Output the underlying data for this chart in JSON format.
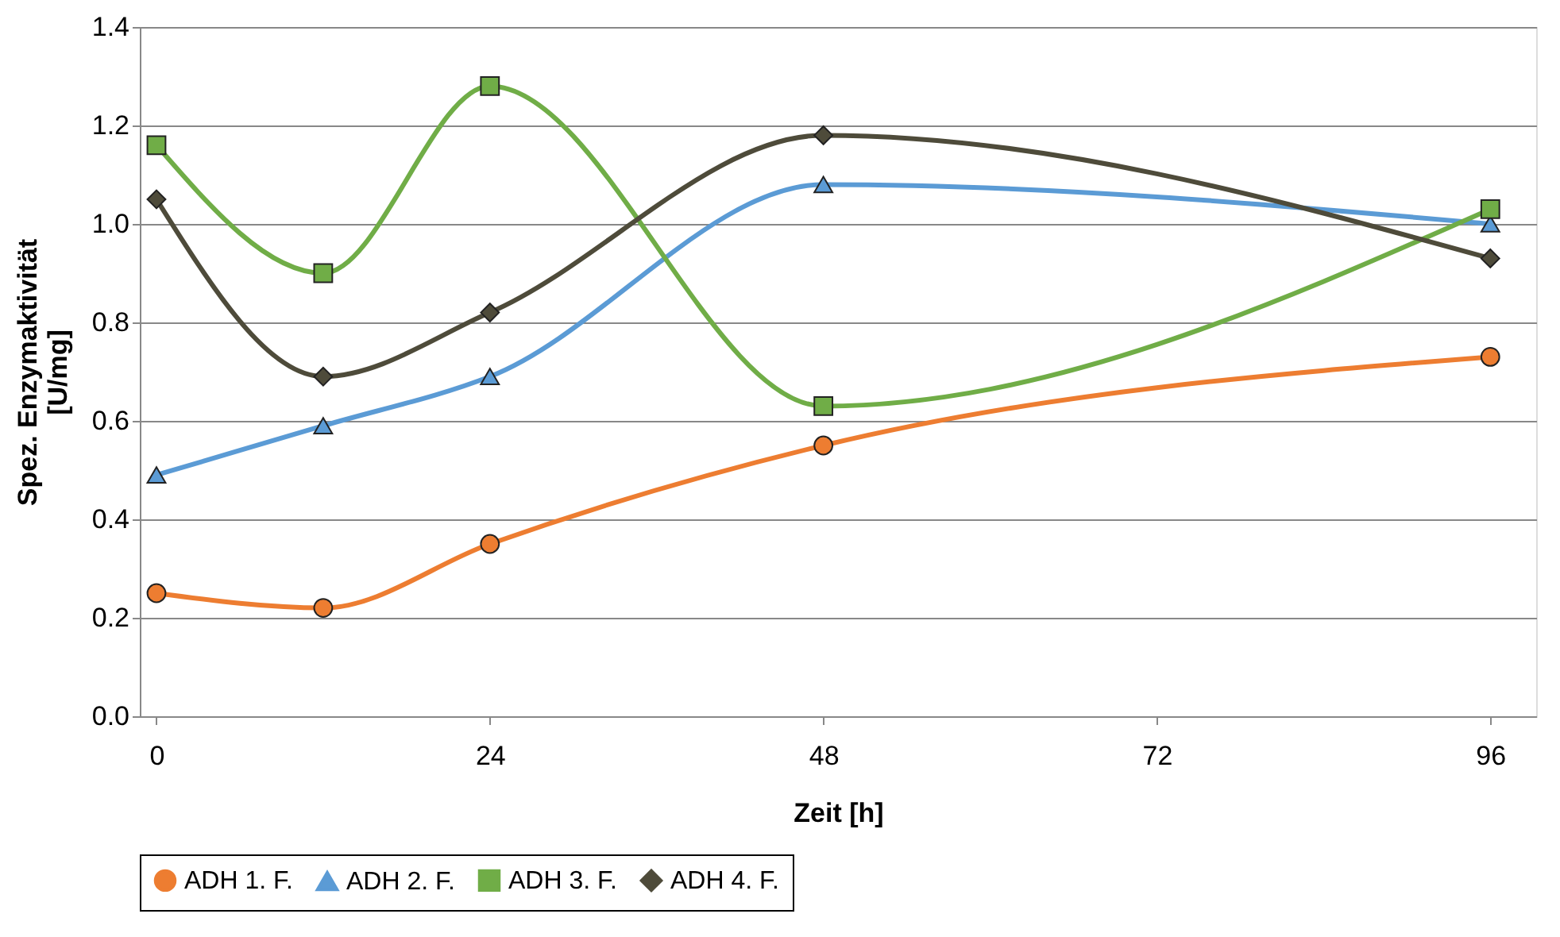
{
  "chart_data": {
    "type": "line",
    "xlabel": "Zeit [h]",
    "ylabel": "Spez. Enzymaktivität [U/mg]",
    "x": [
      0,
      12,
      24,
      48,
      96
    ],
    "xlim": [
      -1.2,
      99.3
    ],
    "xticks": [
      0,
      24,
      48,
      72,
      96
    ],
    "ylim": [
      0,
      1.4
    ],
    "yticks": [
      {
        "value": 0,
        "label": "0.0"
      },
      {
        "value": 0.2,
        "label": "0.2"
      },
      {
        "value": 0.4,
        "label": "0.4"
      },
      {
        "value": 0.6,
        "label": "0.6"
      },
      {
        "value": 0.8,
        "label": "0.8"
      },
      {
        "value": 1.0,
        "label": "1.0"
      },
      {
        "value": 1.2,
        "label": "1.2"
      },
      {
        "value": 1.4,
        "label": "1.4"
      }
    ],
    "grid": "y",
    "legend": "bottom",
    "series": [
      {
        "name": "ADH 1. F.",
        "color": "#ed7d31",
        "marker": "circle",
        "values": [
          0.25,
          0.22,
          0.35,
          0.55,
          0.73
        ]
      },
      {
        "name": "ADH 2. F.",
        "color": "#5b9bd5",
        "marker": "triangle",
        "values": [
          0.49,
          0.59,
          0.69,
          1.08,
          1.0
        ]
      },
      {
        "name": "ADH 3. F.",
        "color": "#70ad47",
        "marker": "square",
        "values": [
          1.16,
          0.9,
          1.28,
          0.63,
          1.03
        ]
      },
      {
        "name": "ADH 4. F.",
        "color": "#4e4b3a",
        "marker": "diamond",
        "values": [
          1.05,
          0.69,
          0.82,
          1.18,
          0.93
        ]
      }
    ]
  }
}
